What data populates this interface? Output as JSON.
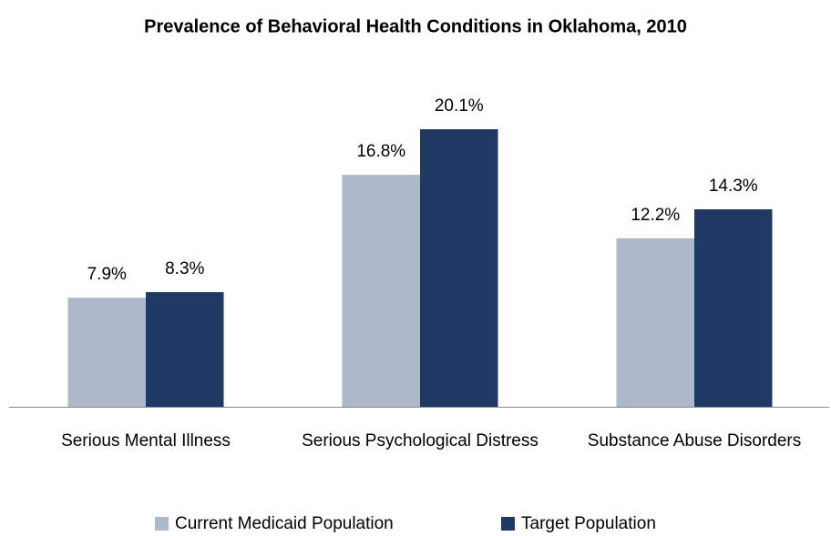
{
  "chart_data": {
    "type": "bar",
    "title": "Prevalence of Behavioral Health Conditions in Oklahoma, 2010",
    "categories": [
      "Serious Mental Illness",
      "Serious Psychological Distress",
      "Substance Abuse Disorders"
    ],
    "series": [
      {
        "name": "Current Medicaid Population",
        "color": "#adb9ca",
        "values": [
          7.9,
          16.8,
          12.2
        ],
        "value_labels": [
          "7.9%",
          "16.8%",
          "12.2%"
        ]
      },
      {
        "name": "Target Population",
        "color": "#1f3864",
        "values": [
          8.3,
          20.1,
          14.3
        ],
        "value_labels": [
          "8.3%",
          "20.1%",
          "14.3%"
        ]
      }
    ],
    "legend": "bottom"
  }
}
